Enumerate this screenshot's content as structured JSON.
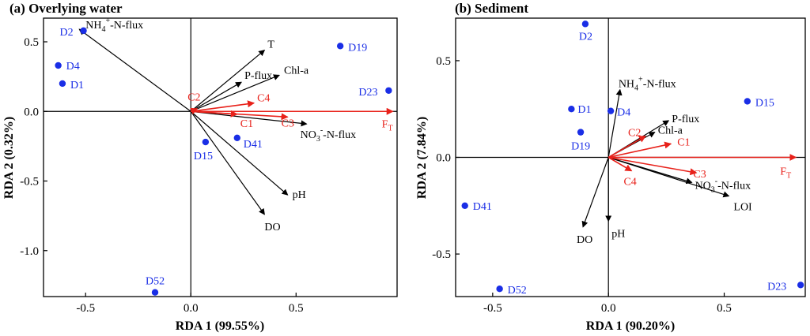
{
  "chart_data": [
    {
      "type": "scatter",
      "title": "(a) Overlying water",
      "xlabel": "RDA 1 (99.55%)",
      "ylabel": "RDA 2 (0.32%)",
      "xlim": [
        -0.7,
        0.98
      ],
      "ylim": [
        -1.33,
        0.67
      ],
      "xticks": [
        -0.5,
        0.0,
        0.5
      ],
      "xtick_labels": [
        "-0.5",
        "0.0",
        "0.5"
      ],
      "yticks": [
        0.5,
        0.0,
        -0.5,
        -1.0
      ],
      "ytick_labels": [
        "0.5",
        "0.0",
        "-0.5",
        "-1.0"
      ],
      "grid": false,
      "colors": {
        "samples": "#1a2ee6",
        "response": "#e8211a",
        "explanatory": "#000000"
      },
      "samples": [
        {
          "label": "D2",
          "x": -0.51,
          "y": 0.58
        },
        {
          "label": "D4",
          "x": -0.63,
          "y": 0.33
        },
        {
          "label": "D1",
          "x": -0.61,
          "y": 0.2
        },
        {
          "label": "D19",
          "x": 0.71,
          "y": 0.47
        },
        {
          "label": "D23",
          "x": 0.94,
          "y": 0.15
        },
        {
          "label": "D15",
          "x": 0.07,
          "y": -0.22
        },
        {
          "label": "D41",
          "x": 0.22,
          "y": -0.19
        },
        {
          "label": "D52",
          "x": -0.17,
          "y": -1.3
        }
      ],
      "response_vectors": [
        {
          "label": "C2",
          "x": 0.03,
          "y": 0.02
        },
        {
          "label": "C4",
          "x": 0.3,
          "y": 0.06
        },
        {
          "label": "C1",
          "x": 0.22,
          "y": -0.02
        },
        {
          "label": "C3",
          "x": 0.46,
          "y": -0.04
        },
        {
          "label": "F",
          "sub": "T",
          "x": 0.96,
          "y": 0.0
        }
      ],
      "explanatory_vectors": [
        {
          "label": "NH",
          "sub": "4",
          "sup": "+",
          "tail": "-N-flux",
          "x": -0.53,
          "y": 0.59
        },
        {
          "label": "T",
          "x": 0.35,
          "y": 0.44
        },
        {
          "label": "P-flux",
          "x": 0.24,
          "y": 0.21
        },
        {
          "label": "Chl-a",
          "x": 0.42,
          "y": 0.26
        },
        {
          "label": "NO",
          "sub": "3",
          "sup": "-",
          "tail": "-N-flux",
          "x": 0.55,
          "y": -0.09
        },
        {
          "label": "pH",
          "x": 0.46,
          "y": -0.6
        },
        {
          "label": "DO",
          "x": 0.35,
          "y": -0.74
        }
      ]
    },
    {
      "type": "scatter",
      "title": "(b) Sediment",
      "xlabel": "RDA 1 (90.20%)",
      "ylabel": "RDA 2 (7.84%)",
      "xlim": [
        -0.66,
        0.85
      ],
      "ylim": [
        -0.72,
        0.72
      ],
      "xticks": [
        -0.5,
        0.0,
        0.5
      ],
      "xtick_labels": [
        "-0.5",
        "0.0",
        "0.5"
      ],
      "yticks": [
        0.5,
        0.0,
        -0.5
      ],
      "ytick_labels": [
        "0.5",
        "0.0",
        "-0.5"
      ],
      "grid": false,
      "colors": {
        "samples": "#1a2ee6",
        "response": "#e8211a",
        "explanatory": "#000000"
      },
      "samples": [
        {
          "label": "D2",
          "x": -0.1,
          "y": 0.69
        },
        {
          "label": "D1",
          "x": -0.16,
          "y": 0.25
        },
        {
          "label": "D4",
          "x": 0.01,
          "y": 0.24
        },
        {
          "label": "D19",
          "x": -0.12,
          "y": 0.13
        },
        {
          "label": "D15",
          "x": 0.6,
          "y": 0.29
        },
        {
          "label": "D41",
          "x": -0.62,
          "y": -0.25
        },
        {
          "label": "D52",
          "x": -0.47,
          "y": -0.68
        },
        {
          "label": "D23",
          "x": 0.83,
          "y": -0.66
        }
      ],
      "response_vectors": [
        {
          "label": "C2",
          "x": 0.16,
          "y": 0.11
        },
        {
          "label": "C1",
          "x": 0.27,
          "y": 0.07
        },
        {
          "label": "C4",
          "x": 0.1,
          "y": -0.07
        },
        {
          "label": "C3",
          "x": 0.38,
          "y": -0.08
        },
        {
          "label": "F",
          "sub": "T",
          "x": 0.81,
          "y": 0.0
        }
      ],
      "explanatory_vectors": [
        {
          "label": "NH",
          "sub": "4",
          "sup": "+",
          "tail": "-N-flux",
          "x": 0.05,
          "y": 0.35
        },
        {
          "label": "P-flux",
          "x": 0.26,
          "y": 0.19
        },
        {
          "label": "Chl-a",
          "x": 0.2,
          "y": 0.13
        },
        {
          "label": "NO",
          "sub": "3",
          "sup": "-",
          "tail": "-N-flux",
          "x": 0.36,
          "y": -0.13
        },
        {
          "label": "LOI",
          "x": 0.52,
          "y": -0.2
        },
        {
          "label": "pH",
          "x": 0.0,
          "y": -0.33
        },
        {
          "label": "DO",
          "x": -0.11,
          "y": -0.36
        }
      ]
    }
  ]
}
